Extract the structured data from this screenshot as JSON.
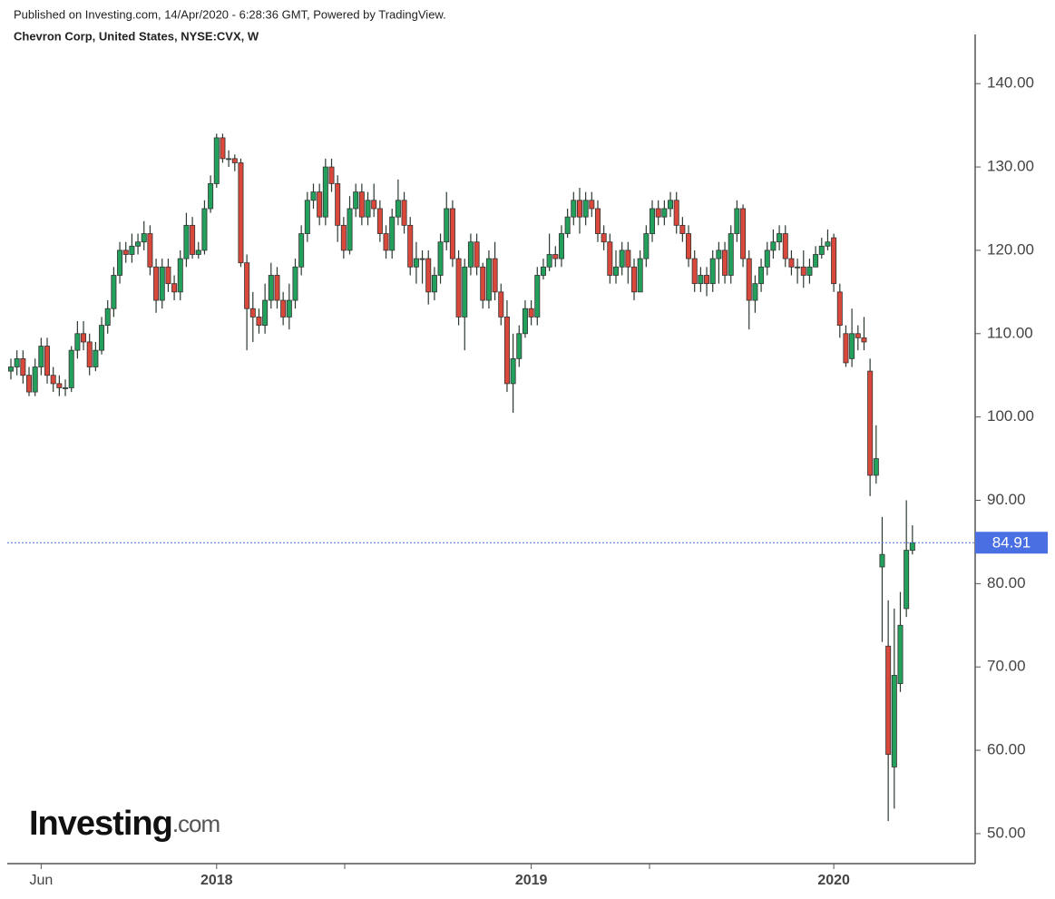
{
  "header": {
    "published": "Published on Investing.com, 14/Apr/2020 - 6:28:36 GMT, Powered by TradingView.",
    "symbol": "Chevron Corp, United States, NYSE:CVX, W"
  },
  "logo": {
    "main": "Investing",
    "suffix": ".com"
  },
  "chart_data": {
    "type": "candlestick",
    "up_color": "#22a05c",
    "down_color": "#d9483b",
    "last_color": "#4a6fe3",
    "ylim": [
      46.4,
      145.9
    ],
    "yticks": [
      {
        "value": 50,
        "label": "50.00"
      },
      {
        "value": 60,
        "label": "60.00"
      },
      {
        "value": 70,
        "label": "70.00"
      },
      {
        "value": 80,
        "label": "80.00"
      },
      {
        "value": 90,
        "label": "90.00"
      },
      {
        "value": 100,
        "label": "100.00"
      },
      {
        "value": 110,
        "label": "110.00"
      },
      {
        "value": 120,
        "label": "120.00"
      },
      {
        "value": 130,
        "label": "130.00"
      },
      {
        "value": 140,
        "label": "140.00"
      }
    ],
    "last_value": 84.91,
    "categories": [
      null,
      null,
      null,
      null,
      null,
      "Jun",
      null,
      null,
      null,
      null,
      null,
      null,
      null,
      null,
      null,
      null,
      null,
      null,
      null,
      null,
      null,
      null,
      null,
      null,
      null,
      null,
      null,
      null,
      null,
      null,
      null,
      null,
      null,
      null,
      "2018",
      null,
      null,
      null,
      null,
      null,
      null,
      null,
      null,
      null,
      null,
      null,
      null,
      null,
      null,
      null,
      null,
      null,
      null,
      null,
      null,
      null,
      null,
      null,
      null,
      null,
      null,
      null,
      null,
      null,
      null,
      null,
      null,
      null,
      null,
      null,
      null,
      null,
      null,
      null,
      null,
      null,
      null,
      null,
      null,
      null,
      null,
      null,
      null,
      null,
      null,
      null,
      "2019",
      null,
      null,
      null,
      null,
      null,
      null,
      null,
      null,
      null,
      null,
      null,
      null,
      null,
      null,
      null,
      null,
      null,
      null,
      null,
      null,
      null,
      null,
      null,
      null,
      null,
      null,
      null,
      null,
      null,
      null,
      null,
      null,
      null,
      null,
      null,
      null,
      null,
      null,
      null,
      null,
      null,
      null,
      null,
      null,
      null,
      null,
      null,
      null,
      null,
      "2020",
      null,
      null,
      null,
      null,
      null,
      null,
      null,
      null,
      null,
      null,
      null,
      null,
      null
    ],
    "open": [
      105.5,
      106,
      107,
      105,
      103,
      106,
      108.5,
      105,
      104,
      103.5,
      103.5,
      108,
      110,
      109,
      106,
      108,
      111,
      113,
      117,
      120,
      119.5,
      120.5,
      121,
      122,
      118,
      114,
      118,
      116,
      115,
      119,
      123,
      119.5,
      120,
      125,
      128,
      133.5,
      131,
      131,
      130.5,
      118.5,
      113,
      112,
      111,
      114,
      117,
      114,
      112,
      114,
      118,
      122,
      126,
      127,
      124,
      130,
      128,
      123,
      120,
      125,
      127,
      124,
      126,
      125,
      122,
      120,
      124,
      126,
      123,
      118,
      119,
      119,
      115,
      117,
      121,
      125,
      119,
      112,
      118,
      121,
      118,
      114,
      119,
      115,
      112,
      104,
      107,
      110,
      113,
      112,
      117,
      118,
      119.5,
      119,
      122,
      124,
      126,
      124,
      126,
      125,
      122,
      121,
      117,
      118,
      120,
      118,
      115,
      119,
      122,
      125,
      124,
      125,
      126,
      123,
      122,
      119,
      116,
      117,
      116,
      119,
      120,
      117,
      122,
      125,
      119,
      114,
      116,
      118,
      120,
      121,
      122,
      119,
      118,
      118,
      117,
      118,
      119.5,
      120.5,
      121.5,
      115,
      110,
      107,
      110,
      109.5,
      105.5,
      93,
      82,
      72.5,
      58,
      68,
      77,
      84
    ],
    "high": [
      107,
      108,
      108,
      106,
      107,
      109.5,
      109.5,
      106,
      105,
      104.5,
      108.5,
      111.5,
      111.5,
      110,
      109,
      112,
      114,
      118,
      121,
      121,
      122,
      122,
      123.5,
      123,
      119,
      119,
      119,
      117,
      120,
      124.5,
      124,
      121,
      126,
      129,
      134,
      134,
      132,
      131.5,
      131,
      119.5,
      115,
      113,
      116,
      118.5,
      118,
      115,
      116,
      119,
      123,
      127,
      128,
      128,
      131,
      131,
      129,
      124,
      126.5,
      128,
      128,
      127,
      128,
      126,
      123,
      125,
      128.5,
      127,
      124,
      121,
      120,
      120,
      118,
      122,
      127,
      126,
      120,
      119,
      122,
      122,
      118.5,
      120,
      121,
      116,
      114,
      110,
      111,
      114,
      114,
      118,
      119,
      122,
      120.5,
      123,
      125,
      127,
      127.5,
      127,
      127,
      126,
      123,
      122,
      120,
      121,
      121,
      119,
      120,
      123,
      126,
      126,
      126,
      127,
      127,
      124,
      123,
      120,
      118,
      118,
      120,
      121,
      121,
      123,
      126,
      125.5,
      120,
      117,
      119,
      121,
      122.5,
      123,
      123,
      120,
      119,
      120,
      119,
      120.5,
      121.5,
      122.5,
      122,
      116,
      111,
      113,
      111,
      112,
      107,
      99,
      88,
      78,
      77,
      79,
      90,
      87
    ],
    "low": [
      104.5,
      105,
      104,
      102.5,
      102.5,
      105,
      104,
      103,
      102.5,
      102.5,
      103,
      107,
      108,
      105,
      105.5,
      107.5,
      110,
      112,
      116,
      118.5,
      118.5,
      119.5,
      120,
      117,
      112.5,
      113,
      115,
      114,
      114,
      118,
      119,
      119,
      119.5,
      124.5,
      127.5,
      130.5,
      130,
      129.5,
      118,
      108,
      109,
      110,
      110,
      113,
      113,
      111,
      110.5,
      113,
      117,
      121,
      125,
      123,
      123,
      127,
      121,
      119,
      119.5,
      124,
      123,
      123,
      124,
      121,
      119,
      119,
      123,
      122,
      117,
      116,
      116,
      113.5,
      114,
      116,
      120,
      118,
      111,
      108,
      117,
      117,
      113,
      113,
      114,
      111,
      103,
      100.5,
      106,
      109.5,
      111,
      111,
      116.5,
      117.5,
      118,
      118,
      121.5,
      123,
      122,
      123,
      124,
      121,
      120,
      116,
      116,
      117,
      116,
      114,
      115,
      118,
      121,
      123,
      123,
      124,
      122,
      121,
      118,
      115,
      115,
      114.5,
      115,
      116,
      116,
      116,
      121,
      118,
      110.5,
      112.5,
      115,
      117,
      119,
      120,
      118,
      117,
      116,
      115.5,
      116,
      118,
      119,
      120,
      115,
      109.5,
      106,
      106,
      108,
      108,
      90.5,
      92,
      73,
      51.5,
      53,
      67,
      76,
      83.5
    ],
    "close": [
      106,
      107,
      105,
      103,
      106,
      108.5,
      105,
      104,
      103.5,
      103.5,
      108,
      110,
      109,
      106,
      108,
      111,
      113,
      117,
      120,
      119.5,
      120.5,
      121,
      122,
      118,
      114,
      118,
      116,
      115,
      119,
      123,
      119.5,
      120,
      125,
      128,
      133.5,
      131,
      131,
      130.5,
      118.5,
      113,
      112,
      111,
      114,
      117,
      114,
      112,
      114,
      118,
      122,
      126,
      127,
      124,
      130,
      128,
      123,
      120,
      125,
      127,
      124,
      126,
      125,
      122,
      120,
      124,
      126,
      123,
      118,
      119,
      119,
      115,
      117,
      121,
      125,
      119,
      112,
      118,
      121,
      118,
      114,
      119,
      115,
      112,
      104,
      107,
      110,
      113,
      112,
      117,
      118,
      119.5,
      119,
      122,
      124,
      126,
      124,
      126,
      125,
      122,
      121,
      117,
      118,
      120,
      118,
      115,
      119,
      122,
      125,
      124,
      125,
      126,
      123,
      122,
      119,
      116,
      117,
      116,
      119,
      120,
      117,
      122,
      125,
      119,
      114,
      116,
      118,
      120,
      121,
      122,
      119,
      118,
      118,
      117,
      118,
      119.5,
      120.5,
      121,
      116,
      111,
      106.5,
      110,
      109.5,
      109,
      93,
      95,
      83.5,
      59.5,
      69,
      75,
      84,
      84.91
    ]
  }
}
